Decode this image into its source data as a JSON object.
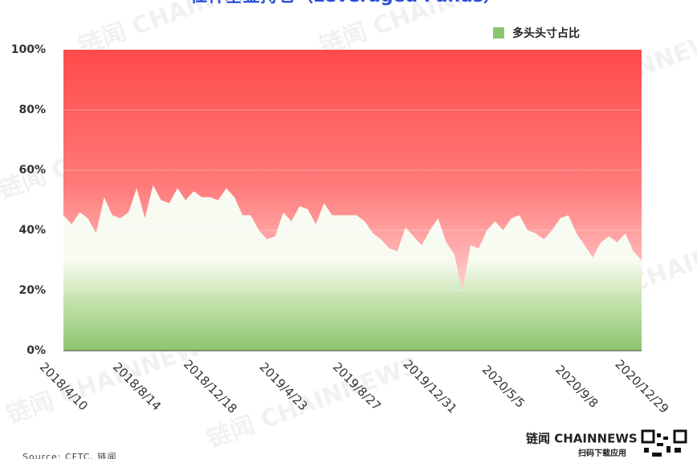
{
  "chart_data": {
    "type": "area",
    "title": "杠杆基金持仓（Leveraged Funds）",
    "source": "Source: CFTC, 链闻",
    "watermark": "链闻 CHAINNEWS",
    "brand": "链闻 CHAINNEWS",
    "brand_caption": "扫码下载应用",
    "categories": [
      "2018/4/10",
      null,
      null,
      null,
      null,
      null,
      null,
      null,
      null,
      "2018/8/14",
      null,
      null,
      null,
      null,
      null,
      null,
      null,
      null,
      "2018/12/18",
      null,
      null,
      null,
      null,
      null,
      null,
      null,
      null,
      "2019/4/23",
      null,
      null,
      null,
      null,
      null,
      null,
      null,
      null,
      "2019/8/27",
      null,
      null,
      null,
      null,
      null,
      null,
      null,
      null,
      "2019/12/31",
      null,
      null,
      null,
      null,
      null,
      null,
      null,
      null,
      "2020/5/5",
      null,
      null,
      null,
      null,
      null,
      null,
      null,
      null,
      "2020/9/8",
      null,
      null,
      null,
      null,
      null,
      null,
      null,
      "2020/12/29"
    ],
    "series": [
      {
        "name": "多头头寸占比",
        "color": "#8cc56f",
        "values": [
          45,
          42,
          46,
          44,
          39,
          51,
          45,
          44,
          46,
          54,
          44,
          55,
          50,
          49,
          54,
          50,
          53,
          51,
          51,
          50,
          54,
          51,
          45,
          45,
          40,
          37,
          38,
          46,
          43,
          48,
          47,
          42,
          49,
          45,
          45,
          45,
          45,
          43,
          39,
          37,
          34,
          33,
          41,
          38,
          35,
          40,
          44,
          36,
          32,
          20,
          35,
          34,
          40,
          43,
          40,
          44,
          45,
          40,
          39,
          37,
          40,
          44,
          45,
          39,
          35,
          31,
          36,
          38,
          36,
          39,
          33,
          30
        ]
      }
    ],
    "background_color": "#ff4a4a",
    "ylim": [
      0,
      100
    ],
    "yticks": [
      {
        "value": 0,
        "label": "0%"
      },
      {
        "value": 20,
        "label": "20%"
      },
      {
        "value": 40,
        "label": "40%"
      },
      {
        "value": 60,
        "label": "60%"
      },
      {
        "value": 80,
        "label": "80%"
      },
      {
        "value": 100,
        "label": "100%"
      }
    ],
    "grid": true,
    "legend": "top-right"
  }
}
